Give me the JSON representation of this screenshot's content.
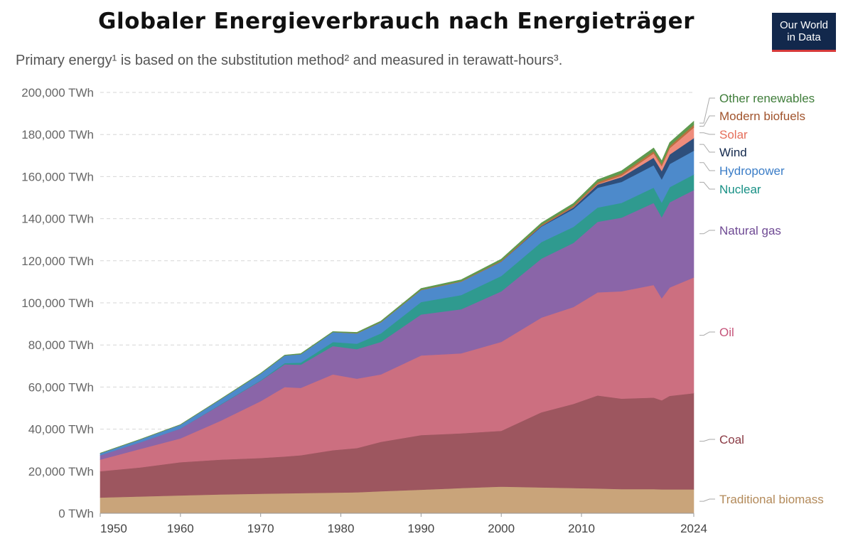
{
  "header": {
    "title": "Globaler Energieverbrauch nach Energieträger",
    "subtitle": "Primary energy¹ is based on the substitution method² and measured in terawatt-hours³.",
    "logo_line1": "Our World",
    "logo_line2": "in Data"
  },
  "chart_data": {
    "type": "area",
    "stacked": true,
    "title": "Globaler Energieverbrauch nach Energieträger",
    "subtitle": "Primary energy¹ is based on the substitution method² and measured in terawatt-hours³.",
    "unit": "TWh",
    "xlim": [
      1950,
      2024
    ],
    "ylim": [
      0,
      200000
    ],
    "yticks": [
      0,
      20000,
      40000,
      60000,
      80000,
      100000,
      120000,
      140000,
      160000,
      180000,
      200000
    ],
    "ytick_labels": [
      "0 TWh",
      "20,000 TWh",
      "40,000 TWh",
      "60,000 TWh",
      "80,000 TWh",
      "100,000 TWh",
      "120,000 TWh",
      "140,000 TWh",
      "160,000 TWh",
      "180,000 TWh",
      "200,000 TWh"
    ],
    "xticks": [
      1950,
      1960,
      1970,
      1980,
      1990,
      2000,
      2010,
      2024
    ],
    "xtick_labels": [
      "1950",
      "1960",
      "1970",
      "1980",
      "1990",
      "2000",
      "2010",
      "2024"
    ],
    "grid": true,
    "legend_position": "right",
    "x": [
      1950,
      1955,
      1960,
      1965,
      1970,
      1973,
      1975,
      1979,
      1982,
      1985,
      1990,
      1995,
      2000,
      2005,
      2009,
      2012,
      2015,
      2019,
      2020,
      2021,
      2024
    ],
    "series": [
      {
        "name": "Traditional biomass",
        "color": "#c9a47a",
        "label_color": "#b38a5a",
        "values": [
          7500,
          8000,
          8500,
          9000,
          9300,
          9500,
          9600,
          9800,
          10000,
          10500,
          11200,
          12000,
          12700,
          12300,
          12000,
          11800,
          11500,
          11500,
          11400,
          11400,
          11400
        ]
      },
      {
        "name": "Coal",
        "color": "#9d565f",
        "label_color": "#8a3a44",
        "values": [
          12500,
          13800,
          15800,
          16500,
          17000,
          17500,
          18000,
          20200,
          21000,
          23500,
          26000,
          26000,
          26500,
          35700,
          40000,
          44200,
          43000,
          43500,
          42300,
          44400,
          45700
        ]
      },
      {
        "name": "Oil",
        "color": "#cc6f80",
        "label_color": "#c5547a",
        "values": [
          5500,
          8800,
          11300,
          18500,
          27000,
          33000,
          32000,
          36000,
          33000,
          32000,
          37800,
          38000,
          42300,
          45000,
          46000,
          49000,
          51000,
          53500,
          48500,
          51500,
          55000
        ]
      },
      {
        "name": "Natural gas",
        "color": "#8a65a8",
        "label_color": "#6f4a94",
        "values": [
          2100,
          3200,
          4700,
          7600,
          9700,
          10800,
          11000,
          13500,
          14000,
          15500,
          19500,
          21000,
          24000,
          28000,
          30500,
          33500,
          35000,
          39000,
          38500,
          40500,
          41500
        ]
      },
      {
        "name": "Nuclear",
        "color": "#2f9a8f",
        "label_color": "#179085",
        "values": [
          0,
          0,
          0,
          200,
          200,
          600,
          1000,
          1900,
          2600,
          4000,
          5900,
          6700,
          7300,
          7900,
          7600,
          6800,
          7000,
          7300,
          7000,
          7200,
          7400
        ]
      },
      {
        "name": "Hydropower",
        "color": "#4d8acb",
        "label_color": "#3b7dc7",
        "values": [
          900,
          1300,
          1800,
          2400,
          3200,
          3600,
          4000,
          4700,
          4900,
          5300,
          5700,
          6400,
          6800,
          7400,
          8500,
          9400,
          10000,
          10600,
          11000,
          11000,
          11300
        ]
      },
      {
        "name": "Wind",
        "color": "#2e4f7c",
        "label_color": "#12284c",
        "values": [
          0,
          0,
          0,
          0,
          0,
          0,
          0,
          0,
          0,
          0,
          0,
          0,
          100,
          300,
          800,
          1500,
          2300,
          3600,
          4000,
          4500,
          6000
        ]
      },
      {
        "name": "Solar",
        "color": "#ef8c7c",
        "label_color": "#e56e5a",
        "values": [
          0,
          0,
          0,
          0,
          0,
          0,
          0,
          0,
          0,
          0,
          0,
          0,
          0,
          0,
          100,
          300,
          700,
          2000,
          2300,
          3000,
          5000
        ]
      },
      {
        "name": "Modern biofuels",
        "color": "#b9703f",
        "label_color": "#a1542d",
        "values": [
          0,
          0,
          0,
          0,
          0,
          0,
          0,
          0,
          100,
          100,
          200,
          200,
          300,
          500,
          800,
          900,
          1000,
          1100,
          1000,
          1100,
          1300
        ]
      },
      {
        "name": "Other renewables",
        "color": "#5f9a4f",
        "label_color": "#3f7d3a",
        "values": [
          100,
          100,
          100,
          100,
          200,
          200,
          300,
          300,
          400,
          500,
          600,
          700,
          800,
          900,
          1000,
          1100,
          1300,
          1500,
          1500,
          1600,
          1700
        ]
      }
    ]
  }
}
